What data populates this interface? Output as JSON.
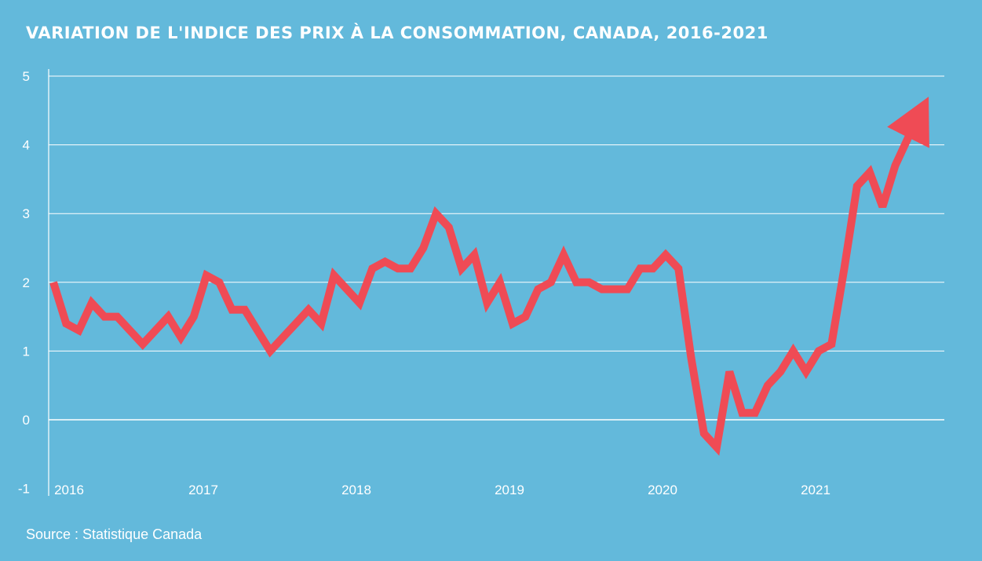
{
  "title": "VARIATION DE L'INDICE DES PRIX À LA CONSOMMATION, CANADA, 2016-2021",
  "source": "Source :  Statistique Canada",
  "colors": {
    "background": "#63b9db",
    "line": "#ef4b55",
    "grid": "#ffffff",
    "text": "#ffffff"
  },
  "chart_data": {
    "type": "line",
    "title": "VARIATION DE L'INDICE DES PRIX À LA CONSOMMATION, CANADA, 2016-2021",
    "xlabel": "",
    "ylabel": "",
    "ylim": [
      -1,
      5
    ],
    "yticks": [
      5,
      4,
      3,
      2,
      1,
      0,
      -1
    ],
    "x_tick_labels": [
      "2016",
      "2017",
      "2018",
      "2019",
      "2020",
      "2021"
    ],
    "grid": true,
    "end_marker": "arrow",
    "series": [
      {
        "values": [
          2.0,
          1.4,
          1.3,
          1.7,
          1.5,
          1.5,
          1.3,
          1.1,
          1.3,
          1.5,
          1.2,
          1.5,
          2.1,
          2.0,
          1.6,
          1.6,
          1.3,
          1.0,
          1.2,
          1.4,
          1.6,
          1.4,
          2.1,
          1.9,
          1.7,
          2.2,
          2.3,
          2.2,
          2.2,
          2.5,
          3.0,
          2.8,
          2.2,
          2.4,
          1.7,
          2.0,
          1.4,
          1.5,
          1.9,
          2.0,
          2.4,
          2.0,
          2.0,
          1.9,
          1.9,
          1.9,
          2.2,
          2.2,
          2.4,
          2.2,
          0.9,
          -0.2,
          -0.4,
          0.7,
          0.1,
          0.1,
          0.5,
          0.7,
          1.0,
          0.7,
          1.0,
          1.1,
          2.2,
          3.4,
          3.6,
          3.1,
          3.7,
          4.1,
          4.7
        ]
      }
    ]
  }
}
